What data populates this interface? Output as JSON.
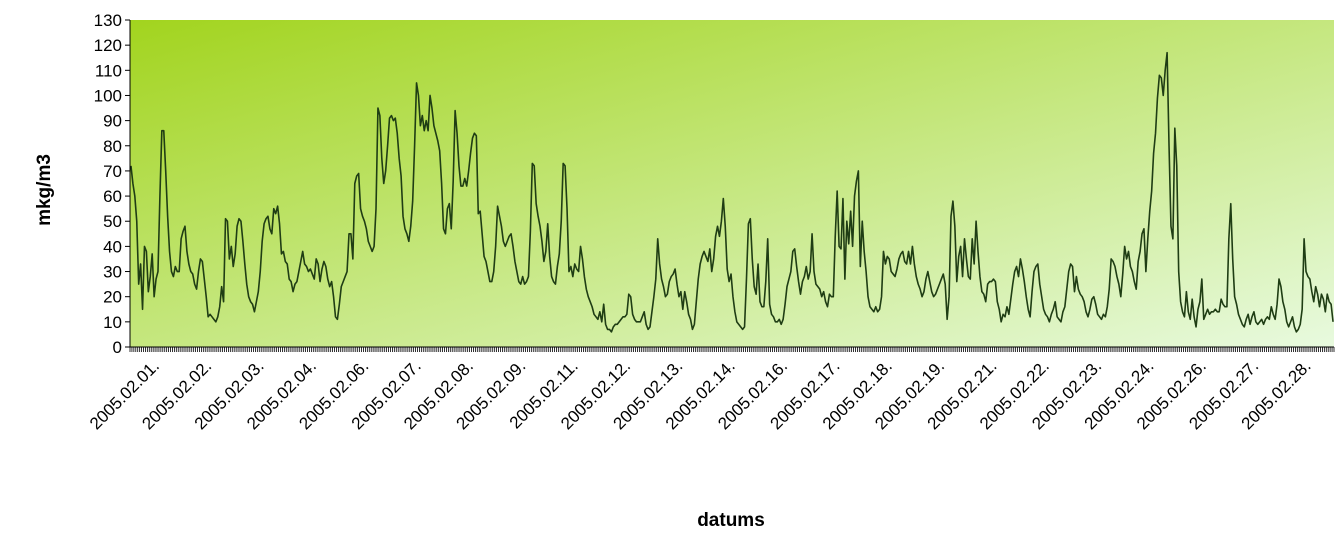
{
  "chart_data": {
    "type": "line",
    "title": "",
    "xlabel": "datums",
    "ylabel": "mkg/m3",
    "ylim": [
      0,
      130
    ],
    "yticks": [
      0,
      10,
      20,
      30,
      40,
      50,
      60,
      70,
      80,
      90,
      100,
      110,
      120,
      130
    ],
    "grid": false,
    "legend": "none",
    "xcategories": [
      "2005.02.01.",
      "2005.02.02.",
      "2005.02.03.",
      "2005.02.04.",
      "2005.02.06.",
      "2005.02.07.",
      "2005.02.08.",
      "2005.02.09.",
      "2005.02.11.",
      "2005.02.12.",
      "2005.02.13.",
      "2005.02.14.",
      "2005.02.16.",
      "2005.02.17.",
      "2005.02.18.",
      "2005.02.19.",
      "2005.02.21.",
      "2005.02.22.",
      "2005.02.23.",
      "2005.02.24.",
      "2005.02.26.",
      "2005.02.27.",
      "2005.02.28."
    ],
    "colors": {
      "line": "#1f3d14",
      "plot_bg_from": "#a2d41e",
      "plot_bg_to": "#e8fadf",
      "axis": "#000000"
    },
    "series": [
      {
        "name": "",
        "values": [
          72,
          65,
          60,
          50,
          25,
          33,
          15,
          40,
          38,
          22,
          28,
          37,
          20,
          27,
          30,
          60,
          86,
          86,
          70,
          52,
          38,
          30,
          28,
          32,
          30,
          30,
          43,
          46,
          48,
          38,
          33,
          30,
          29,
          25,
          23,
          30,
          35,
          34,
          27,
          20,
          12,
          13,
          12,
          11,
          10,
          12,
          16,
          24,
          18,
          51,
          50,
          35,
          40,
          32,
          37,
          48,
          51,
          50,
          42,
          33,
          25,
          20,
          18,
          17,
          14,
          18,
          22,
          30,
          42,
          49,
          51,
          52,
          47,
          45,
          55,
          53,
          56,
          49,
          37,
          38,
          34,
          33,
          27,
          26,
          22,
          25,
          26,
          30,
          34,
          38,
          33,
          32,
          30,
          31,
          29,
          27,
          35,
          33,
          26,
          31,
          34,
          32,
          27,
          24,
          26,
          20,
          12,
          11,
          17,
          24,
          26,
          28,
          30,
          45,
          45,
          35,
          65,
          68,
          69,
          55,
          52,
          50,
          47,
          42,
          40,
          38,
          40,
          55,
          95,
          92,
          75,
          65,
          70,
          80,
          91,
          92,
          90,
          91,
          85,
          75,
          68,
          52,
          47,
          45,
          42,
          48,
          58,
          80,
          105,
          100,
          88,
          92,
          86,
          90,
          86,
          100,
          95,
          88,
          85,
          82,
          78,
          65,
          47,
          45,
          55,
          57,
          47,
          66,
          94,
          85,
          72,
          64,
          64,
          67,
          64,
          70,
          77,
          83,
          85,
          84,
          53,
          54,
          45,
          36,
          34,
          30,
          26,
          26,
          30,
          40,
          56,
          52,
          48,
          42,
          40,
          42,
          44,
          45,
          40,
          34,
          30,
          26,
          25,
          28,
          25,
          26,
          28,
          46,
          73,
          72,
          57,
          52,
          48,
          42,
          34,
          38,
          49,
          36,
          28,
          26,
          25,
          32,
          37,
          50,
          73,
          72,
          55,
          30,
          32,
          28,
          33,
          31,
          30,
          40,
          35,
          28,
          23,
          20,
          18,
          16,
          13,
          12,
          11,
          14,
          10,
          17,
          9,
          7,
          7,
          6,
          8,
          9,
          9,
          10,
          11,
          12,
          12,
          13,
          21,
          20,
          13,
          11,
          10,
          10,
          10,
          12,
          14,
          9,
          7,
          8,
          14,
          20,
          27,
          43,
          33,
          27,
          24,
          20,
          21,
          26,
          28,
          29,
          31,
          25,
          20,
          22,
          15,
          22,
          18,
          13,
          11,
          7,
          9,
          18,
          27,
          33,
          36,
          38,
          36,
          34,
          39,
          30,
          35,
          44,
          48,
          44,
          50,
          59,
          48,
          31,
          26,
          29,
          20,
          14,
          10,
          9,
          8,
          7,
          8,
          27,
          49,
          51,
          35,
          24,
          21,
          33,
          18,
          16,
          16,
          26,
          43,
          17,
          13,
          12,
          10,
          10,
          11,
          9,
          11,
          17,
          24,
          27,
          30,
          38,
          39,
          32,
          26,
          21,
          26,
          28,
          32,
          27,
          30,
          45,
          30,
          25,
          24,
          23,
          20,
          22,
          18,
          16,
          21,
          20,
          20,
          44,
          62,
          40,
          39,
          59,
          27,
          50,
          41,
          54,
          40,
          60,
          66,
          70,
          32,
          50,
          38,
          30,
          20,
          16,
          15,
          14,
          16,
          14,
          15,
          20,
          38,
          33,
          36,
          35,
          30,
          29,
          28,
          31,
          35,
          37,
          38,
          34,
          33,
          38,
          33,
          40,
          33,
          28,
          25,
          23,
          20,
          22,
          27,
          30,
          26,
          22,
          20,
          21,
          23,
          25,
          27,
          29,
          25,
          11,
          20,
          52,
          58,
          48,
          26,
          36,
          40,
          28,
          43,
          35,
          28,
          27,
          43,
          33,
          50,
          38,
          28,
          22,
          21,
          18,
          25,
          26,
          26,
          27,
          26,
          18,
          15,
          10,
          13,
          12,
          16,
          13,
          19,
          25,
          30,
          32,
          28,
          35,
          31,
          26,
          20,
          15,
          12,
          22,
          30,
          32,
          33,
          25,
          20,
          15,
          13,
          12,
          10,
          13,
          15,
          18,
          12,
          11,
          10,
          14,
          16,
          23,
          30,
          33,
          32,
          22,
          28,
          23,
          21,
          20,
          18,
          14,
          12,
          15,
          19,
          20,
          17,
          13,
          12,
          11,
          13,
          12,
          16,
          23,
          35,
          34,
          32,
          28,
          25,
          20,
          29,
          40,
          35,
          38,
          32,
          30,
          26,
          23,
          34,
          38,
          45,
          47,
          30,
          43,
          54,
          62,
          77,
          85,
          99,
          108,
          107,
          100,
          110,
          117,
          80,
          48,
          43,
          87,
          72,
          30,
          18,
          14,
          12,
          22,
          14,
          11,
          19,
          12,
          8,
          15,
          18,
          27,
          11,
          13,
          15,
          13,
          14,
          14,
          15,
          14,
          14,
          19,
          17,
          16,
          16,
          43,
          57,
          35,
          20,
          17,
          13,
          11,
          9,
          8,
          11,
          13,
          9,
          12,
          14,
          10,
          9,
          10,
          11,
          9,
          11,
          12,
          11,
          16,
          13,
          11,
          17,
          27,
          24,
          18,
          15,
          10,
          8,
          10,
          12,
          8,
          6,
          7,
          9,
          15,
          43,
          30,
          28,
          27,
          22,
          18,
          24,
          21,
          16,
          21,
          19,
          14,
          21,
          18,
          17,
          10
        ]
      }
    ]
  }
}
